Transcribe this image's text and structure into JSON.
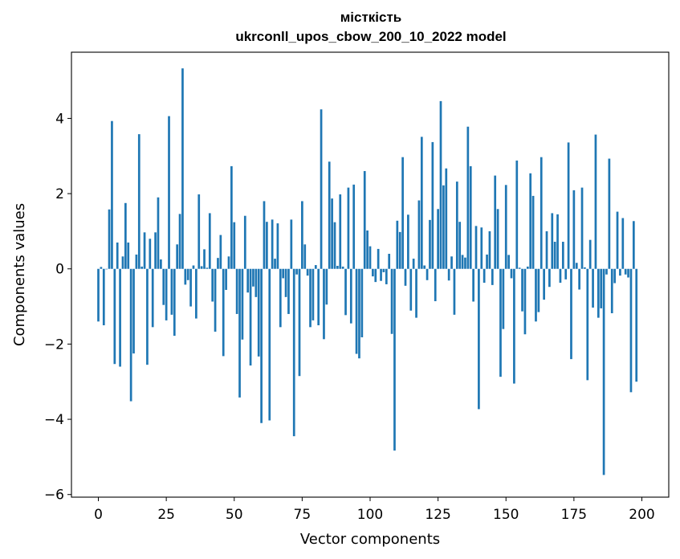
{
  "chart_data": {
    "type": "bar",
    "title": "місткість",
    "subtitle": "ukrconll_upos_cbow_200_10_2022 model",
    "xlabel": "Vector components",
    "ylabel": "Components values",
    "xlim": [
      -9.9,
      209.9
    ],
    "ylim": [
      -6.07,
      5.76
    ],
    "xticks": [
      0,
      25,
      50,
      75,
      100,
      125,
      150,
      175,
      200
    ],
    "yticks": [
      -6,
      -4,
      -2,
      0,
      2,
      4
    ],
    "ytick_labels": [
      "−6",
      "−4",
      "−2",
      "0",
      "2",
      "4"
    ],
    "grid": false,
    "color": "#1f77b4",
    "values": [
      -1.4,
      0.05,
      -1.5,
      0.0,
      1.58,
      3.93,
      -2.53,
      0.7,
      -2.6,
      0.33,
      1.75,
      0.7,
      -3.52,
      -2.25,
      0.38,
      3.58,
      0.06,
      0.97,
      -2.55,
      0.8,
      -1.55,
      0.97,
      1.9,
      0.25,
      -0.96,
      -1.37,
      4.06,
      -1.22,
      -1.78,
      0.65,
      1.46,
      5.33,
      -0.42,
      -0.3,
      -1.0,
      0.09,
      -1.32,
      1.98,
      0.07,
      0.52,
      0.03,
      1.48,
      -0.87,
      -1.67,
      0.29,
      0.9,
      -2.32,
      -0.56,
      0.33,
      2.73,
      1.24,
      -1.2,
      -3.42,
      -1.88,
      1.41,
      -0.63,
      -2.57,
      -0.47,
      -0.75,
      -2.33,
      -4.1,
      1.8,
      1.25,
      -4.03,
      1.31,
      0.27,
      1.21,
      -1.55,
      -0.25,
      -0.75,
      -1.2,
      1.31,
      -4.45,
      -0.15,
      -2.85,
      1.8,
      0.65,
      -0.18,
      -1.55,
      -1.37,
      0.1,
      -1.5,
      4.24,
      -1.87,
      -0.95,
      2.85,
      1.87,
      1.24,
      0.08,
      1.98,
      0.06,
      -1.23,
      2.16,
      -1.45,
      2.24,
      -2.26,
      -2.38,
      -1.82,
      2.6,
      1.02,
      0.6,
      -0.2,
      -0.35,
      0.53,
      -0.32,
      -0.09,
      -0.41,
      0.4,
      -1.73,
      -4.83,
      1.28,
      0.98,
      2.97,
      -0.45,
      1.44,
      -1.11,
      0.27,
      -1.3,
      1.82,
      3.51,
      0.09,
      -0.3,
      1.3,
      3.37,
      -0.86,
      1.59,
      4.46,
      2.22,
      2.67,
      -0.31,
      0.33,
      -1.22,
      2.32,
      1.25,
      0.37,
      0.3,
      3.78,
      2.73,
      -0.87,
      1.14,
      -3.73,
      1.1,
      -0.37,
      0.38,
      1.0,
      -0.43,
      2.48,
      1.59,
      -2.87,
      -1.6,
      2.23,
      0.37,
      -0.25,
      -3.05,
      2.88,
      0.03,
      -1.13,
      -1.74,
      0.06,
      2.54,
      1.94,
      -1.4,
      -1.15,
      2.97,
      -0.82,
      1.0,
      -0.48,
      1.48,
      0.72,
      1.45,
      -0.37,
      0.72,
      -0.28,
      3.36,
      -2.4,
      2.09,
      0.16,
      -0.55,
      2.16,
      0.04,
      -2.96,
      0.77,
      -1.03,
      3.57,
      -1.3,
      -1.05,
      -5.48,
      -0.15,
      2.93,
      -1.18,
      -0.38,
      1.52,
      -0.18,
      1.35,
      -0.15,
      -0.23,
      -3.28,
      1.27,
      -3.0
    ]
  }
}
